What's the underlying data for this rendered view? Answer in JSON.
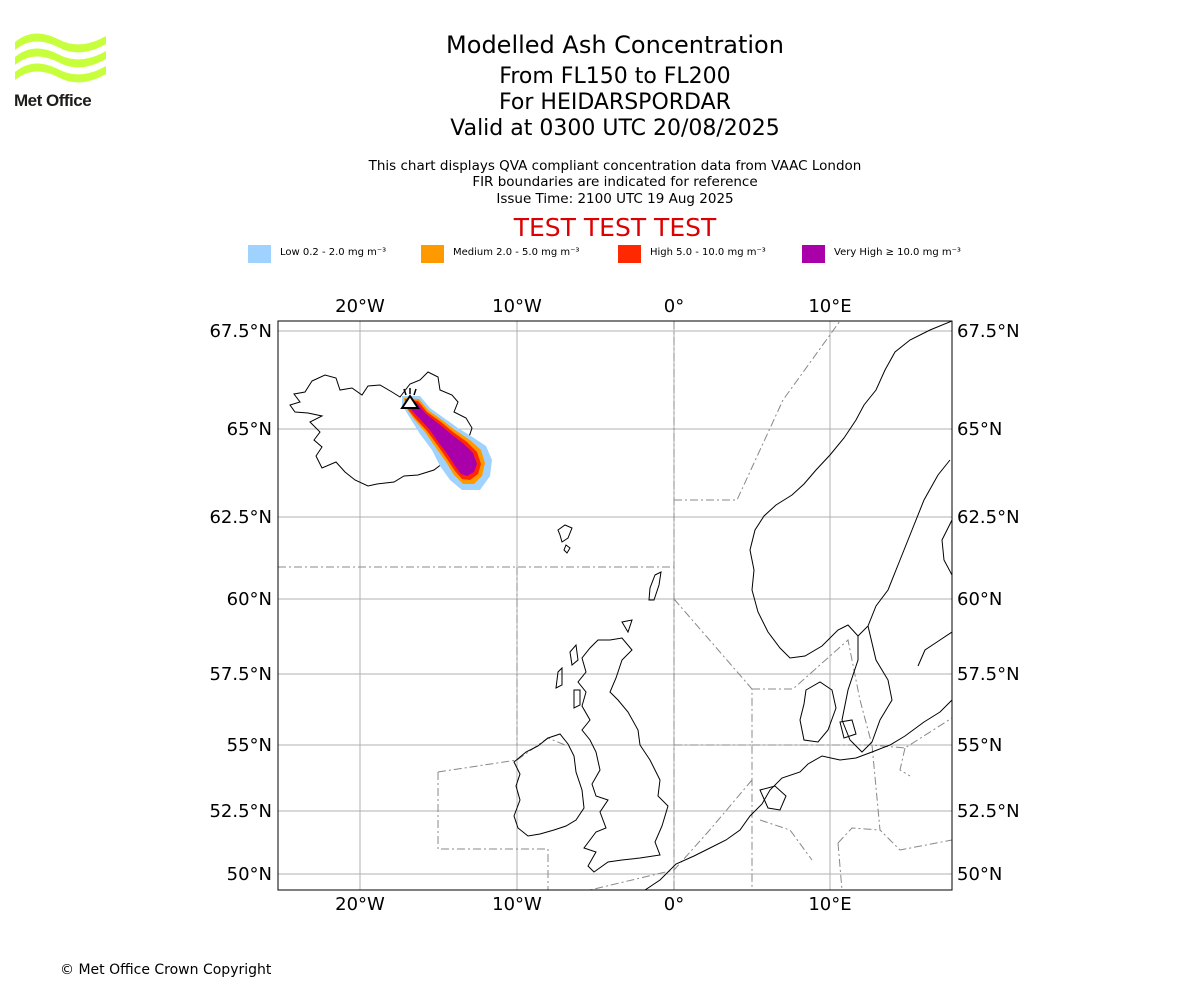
{
  "logo": {
    "text": "Met Office",
    "color": "#c8ff3c"
  },
  "title": {
    "line1": "Modelled Ash Concentration",
    "line2": "From FL150 to FL200",
    "line3": "For HEIDARSPORDAR",
    "line4": "Valid at 0300 UTC 20/08/2025"
  },
  "subtitle": {
    "line1": "This chart displays QVA compliant concentration data from VAAC London",
    "line2": "FIR boundaries are indicated for reference",
    "line3": "Issue Time: 2100 UTC 19 Aug 2025"
  },
  "banner": "TEST TEST TEST",
  "legend": [
    {
      "label": "Low 0.2 - 2.0 mg m⁻³",
      "color": "#a0d2ff"
    },
    {
      "label": "Medium 2.0 - 5.0 mg m⁻³",
      "color": "#ff9900"
    },
    {
      "label": "High 5.0 - 10.0 mg m⁻³",
      "color": "#ff2800"
    },
    {
      "label": "Very High ≥ 10.0 mg m⁻³",
      "color": "#aa00aa"
    }
  ],
  "map": {
    "lon_ticks": [
      "20°W",
      "10°W",
      "0°",
      "10°E"
    ],
    "lat_ticks": [
      "67.5°N",
      "65°N",
      "62.5°N",
      "60°N",
      "57.5°N",
      "55°N",
      "52.5°N",
      "50°N"
    ],
    "volcano_icon": "volcano-icon",
    "volcano_name": "HEIDARSPORDAR"
  },
  "copyright": "© Met Office Crown Copyright"
}
